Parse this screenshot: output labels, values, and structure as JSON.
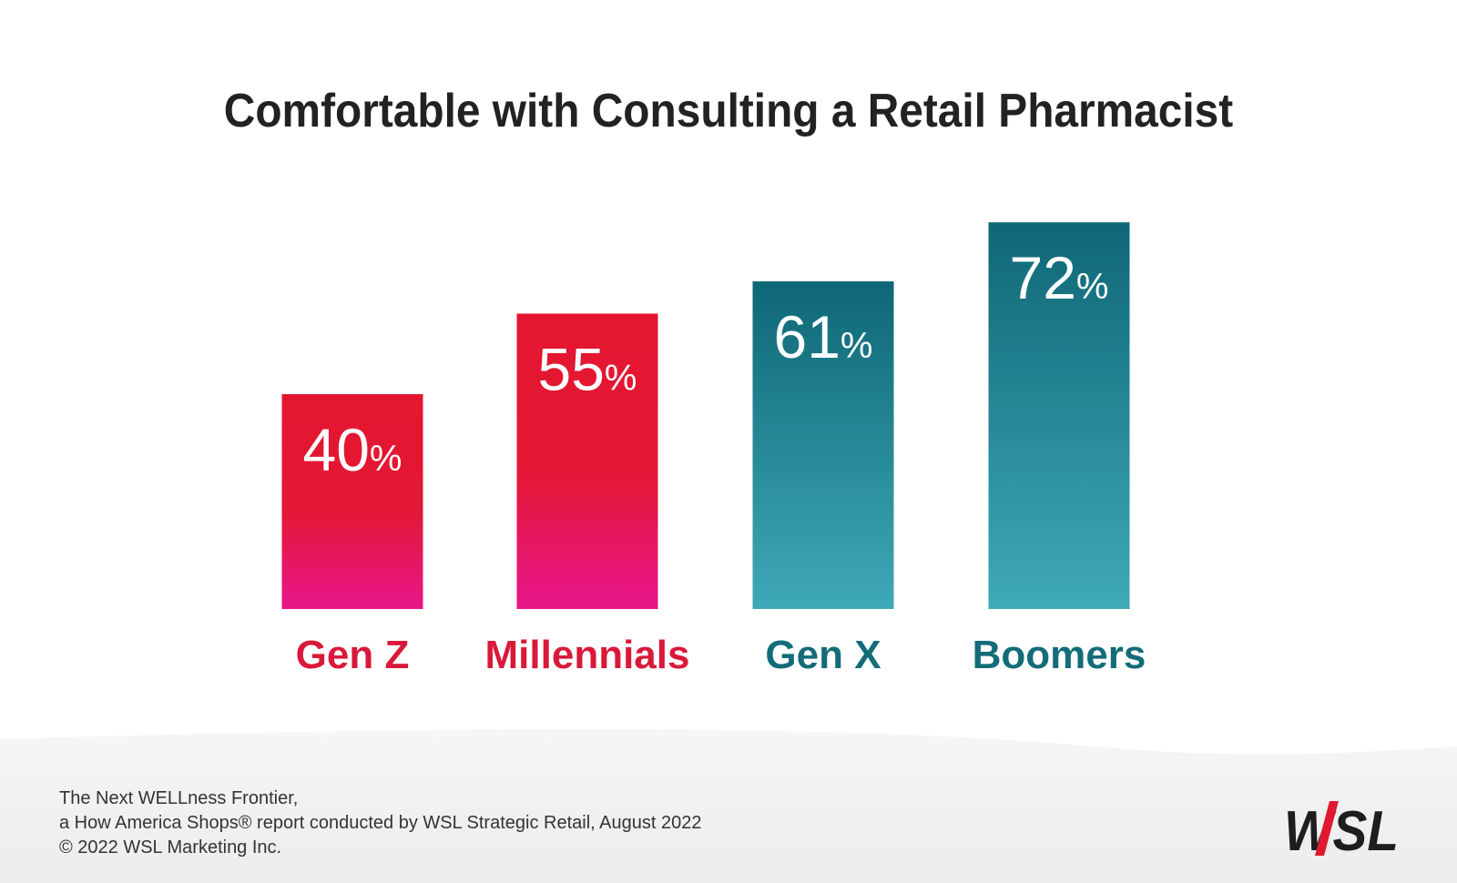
{
  "chart_data": {
    "type": "bar",
    "title": "Comfortable with Consulting a Retail Pharmacist",
    "categories": [
      "Gen Z",
      "Millennials",
      "Gen X",
      "Boomers"
    ],
    "values": [
      40,
      55,
      61,
      72
    ],
    "value_labels": [
      "40",
      "55",
      "61",
      "72"
    ],
    "value_suffix": "%",
    "ylim": [
      0,
      100
    ],
    "grid": false,
    "legend": "none",
    "colors": {
      "red_top": "#e4162f",
      "red_mid": "#e31836",
      "red_bottom": "#e9168b",
      "teal_top": "#0e6776",
      "teal_bottom": "#3fa9b6",
      "red_label": "#d9193a",
      "teal_label": "#136c78"
    },
    "bar_colors": [
      "red",
      "red",
      "teal",
      "teal"
    ]
  },
  "footer": {
    "line1": "The Next WELLness Frontier,",
    "line2": "a How America Shops® report conducted by WSL Strategic Retail, August 2022",
    "line3": "© 2022 WSL Marketing Inc."
  },
  "logo": {
    "text": "WSL"
  }
}
